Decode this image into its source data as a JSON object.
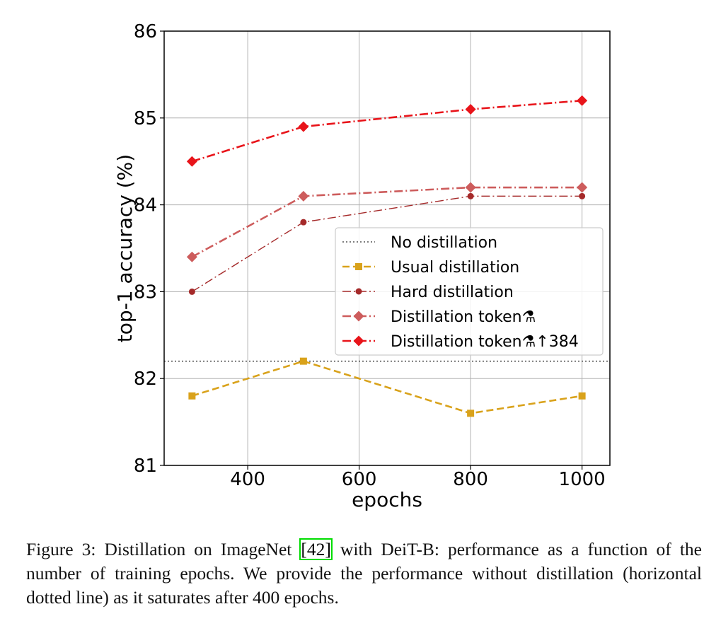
{
  "chart_data": {
    "type": "line",
    "xlabel": "epochs",
    "ylabel": "top-1 accuracy (%)",
    "xlim": [
      250,
      1050
    ],
    "ylim": [
      81,
      86
    ],
    "xticks": [
      400,
      600,
      800,
      1000
    ],
    "yticks": [
      81,
      82,
      83,
      84,
      85,
      86
    ],
    "grid": true,
    "legend_position": "center-right",
    "x": [
      300,
      500,
      800,
      1000
    ],
    "reference_lines": [
      {
        "name": "No distillation",
        "y": 82.2,
        "style": "dotted",
        "color": "#555555"
      }
    ],
    "series": [
      {
        "name": "Usual distillation",
        "values": [
          81.8,
          82.2,
          81.6,
          81.8
        ],
        "color": "#d9a21b",
        "dash": "dashed",
        "marker": "square"
      },
      {
        "name": "Hard distillation",
        "values": [
          83.0,
          83.8,
          84.1,
          84.1
        ],
        "color": "#a52a2a",
        "dash": "dashdot",
        "marker": "dot"
      },
      {
        "name": "Distillation token⚗",
        "values": [
          83.4,
          84.1,
          84.2,
          84.2
        ],
        "color": "#cd5c5c",
        "dash": "dashdot",
        "marker": "diamond"
      },
      {
        "name": "Distillation token⚗↑384",
        "values": [
          84.5,
          84.9,
          85.1,
          85.2
        ],
        "color": "#e8141a",
        "dash": "dashdot",
        "marker": "diamond"
      }
    ]
  },
  "caption": {
    "prefix": "Figure 3: Distillation on ImageNet ",
    "citation": "[42]",
    "suffix": " with DeiT-B: performance as a function of the number of training epochs. We provide the performance without distillation (horizontal dotted line) as it saturates after 400 epochs."
  }
}
